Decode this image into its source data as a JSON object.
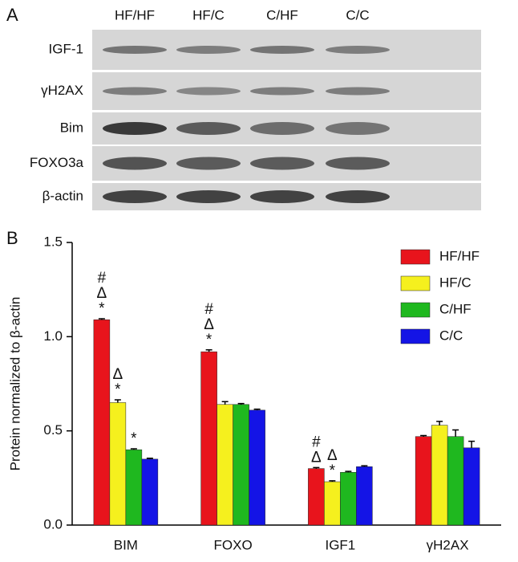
{
  "blot": {
    "panel_label": "A",
    "lanes": [
      "HF/HF",
      "HF/C",
      "C/HF",
      "C/C"
    ],
    "rows": [
      "IGF-1",
      "γH2AX",
      "Bim",
      "FOXO3a",
      "β-actin"
    ]
  },
  "chart_data": {
    "type": "bar",
    "panel_label": "B",
    "y_label": "Protein normalized to β-actin",
    "categories": [
      "BIM",
      "FOXO",
      "IGF1",
      "γH2AX"
    ],
    "series": [
      {
        "name": "HF/HF",
        "color": "#e8141c",
        "values": [
          1.09,
          0.92,
          0.3,
          0.47
        ],
        "errors": [
          0.005,
          0.01,
          0.005,
          0.005
        ],
        "annotations": [
          [
            "#",
            "Δ",
            "*"
          ],
          [
            "#",
            "Δ",
            "*"
          ],
          [
            "#",
            "Δ"
          ],
          []
        ]
      },
      {
        "name": "HF/C",
        "color": "#f5f01e",
        "values": [
          0.65,
          0.64,
          0.23,
          0.53
        ],
        "errors": [
          0.015,
          0.015,
          0.005,
          0.02
        ],
        "annotations": [
          [
            "Δ",
            "*"
          ],
          [],
          [
            "Δ",
            "*"
          ],
          []
        ]
      },
      {
        "name": "C/HF",
        "color": "#1fb81f",
        "values": [
          0.4,
          0.64,
          0.28,
          0.47
        ],
        "errors": [
          0.005,
          0.005,
          0.005,
          0.035
        ],
        "annotations": [
          [
            "*"
          ],
          [],
          [],
          []
        ]
      },
      {
        "name": "C/C",
        "color": "#1414e6",
        "values": [
          0.35,
          0.61,
          0.31,
          0.41
        ],
        "errors": [
          0.005,
          0.005,
          0.005,
          0.035
        ],
        "annotations": [
          [],
          [],
          [],
          []
        ]
      }
    ],
    "ylim": [
      0,
      1.5
    ],
    "yticks": [
      {
        "value": 0,
        "label": "0.0"
      },
      0.5,
      {
        "value": 1,
        "label": "1.0"
      },
      1.5
    ],
    "legend": "top-right"
  }
}
